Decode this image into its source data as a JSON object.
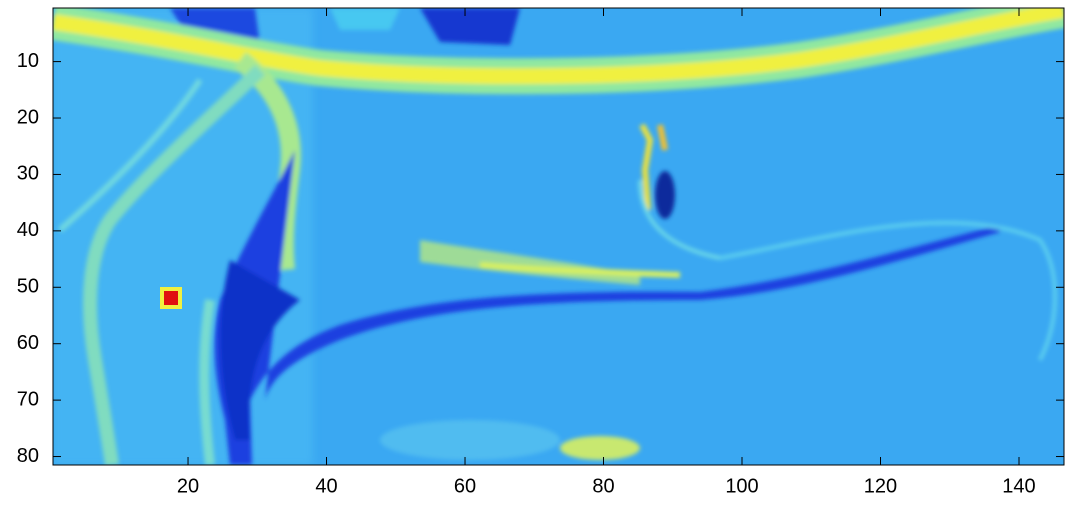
{
  "chart_data": {
    "type": "heatmap",
    "xlim": [
      0.5,
      146.5
    ],
    "ylim": [
      0.5,
      81.5
    ],
    "xticks": [
      20,
      40,
      60,
      80,
      100,
      120,
      140
    ],
    "yticks": [
      10,
      20,
      30,
      40,
      50,
      60,
      70,
      80
    ],
    "y_reversed": true
  }
}
